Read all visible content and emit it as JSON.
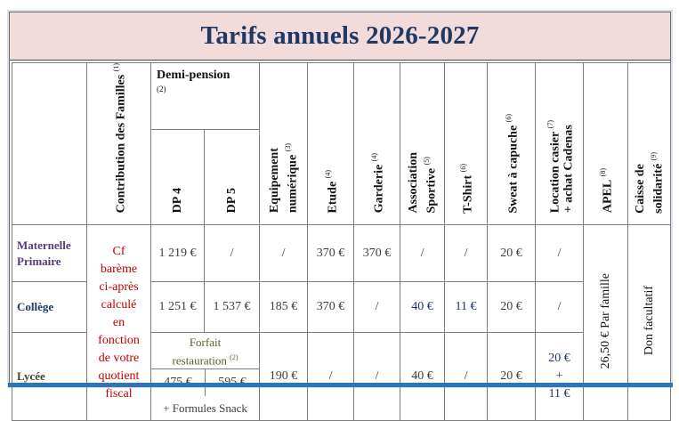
{
  "title": "Tarifs annuels 2026-2027",
  "headers": {
    "contribution": "Contribution des Familles",
    "contribution_note": "(1)",
    "demi_pension": "Demi-pension",
    "demi_pension_note": "(2)",
    "dp4": "DP 4",
    "dp5": "DP 5",
    "equipement_line1": "Equipement",
    "equipement_line2": "numérique",
    "equipement_note": "(3)",
    "etude": "Etude",
    "etude_note": "(4)",
    "garderie": "Garderie",
    "garderie_note": "(4)",
    "association_line1": "Association",
    "association_line2": "Sportive",
    "association_note": "(5)",
    "tshirt": "T-Shirt",
    "tshirt_note": "(6)",
    "sweat": "Sweat à capuche",
    "sweat_note": "(6)",
    "location_line1": "Location casier",
    "location_note": "(7)",
    "location_line2": "+ achat Cadenas",
    "apel": "APEL",
    "apel_note": "(8)",
    "caisse_line1": "Caisse de",
    "caisse_line2": "solidarité",
    "caisse_note": "(9)"
  },
  "rows": {
    "maternelle": {
      "label_line1": "Maternelle",
      "label_line2": "Primaire",
      "dp4": "1 219 €",
      "dp5": "/",
      "equipement": "/",
      "etude": "370 €",
      "garderie": "370 €",
      "association": "/",
      "tshirt": "/",
      "sweat": "20 €",
      "location": "/"
    },
    "college": {
      "label": "Collège",
      "dp4": "1 251 €",
      "dp5": "1 537 €",
      "equipement": "185 €",
      "etude": "370 €",
      "garderie": "/",
      "association": "40 €",
      "tshirt": "11 €",
      "sweat": "20 €",
      "location": "/"
    },
    "lycee": {
      "label": "Lycée",
      "forfait_line1": "Forfait",
      "forfait_line2": "restauration",
      "forfait_note": "(2)",
      "dp4": "475 €",
      "dp5": "595 €",
      "snack": "+ Formules Snack",
      "equipement": "190 €",
      "etude": "/",
      "garderie": "/",
      "association": "40 €",
      "tshirt": "/",
      "sweat": "20 €",
      "location_line1": "20 €",
      "location_line2": "+",
      "location_line3": "11 €"
    }
  },
  "contribution_text": [
    "Cf",
    "barème",
    "ci-après",
    "calculé",
    "en",
    "fonction",
    "de votre",
    "quotient",
    "fiscal"
  ],
  "apel_value": "26,50 € Par famille",
  "caisse_value": "Don facultatif"
}
